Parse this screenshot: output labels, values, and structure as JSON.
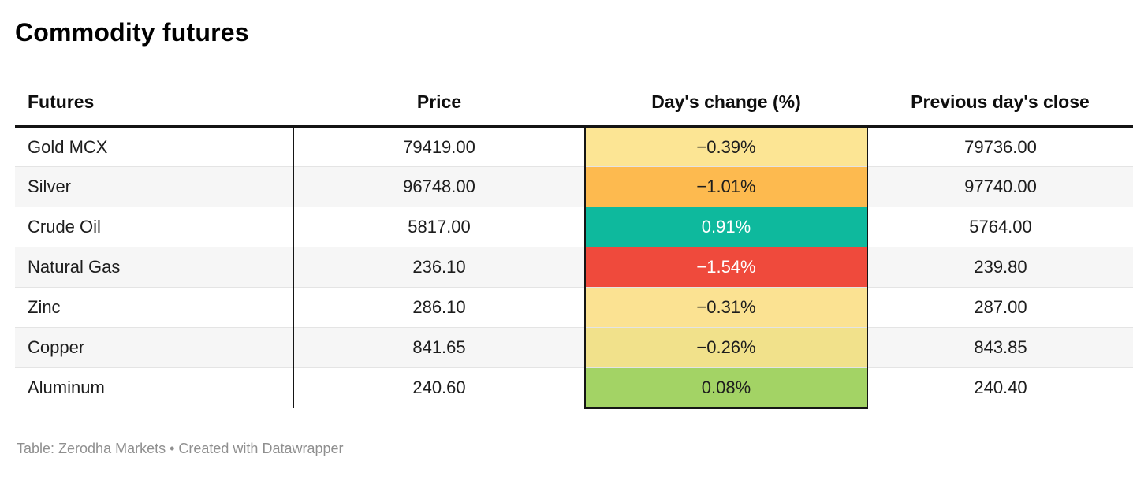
{
  "title": "Commodity futures",
  "footer": "Table: Zerodha Markets • Created with Datawrapper",
  "table": {
    "columns": [
      "Futures",
      "Price",
      "Day's change (%)",
      "Previous day's close"
    ],
    "rows": [
      {
        "futures": "Gold MCX",
        "price": "79419.00",
        "change": "−0.39%",
        "prev_close": "79736.00",
        "change_bg": "#fce594",
        "change_text": "#1d1d1d"
      },
      {
        "futures": "Silver",
        "price": "96748.00",
        "change": "−1.01%",
        "prev_close": "97740.00",
        "change_bg": "#fdba4f",
        "change_text": "#1d1d1d"
      },
      {
        "futures": "Crude Oil",
        "price": "5817.00",
        "change": "0.91%",
        "prev_close": "5764.00",
        "change_bg": "#0eb99d",
        "change_text": "#ffffff"
      },
      {
        "futures": "Natural Gas",
        "price": "236.10",
        "change": "−1.54%",
        "prev_close": "239.80",
        "change_bg": "#ef4a3c",
        "change_text": "#ffffff"
      },
      {
        "futures": "Zinc",
        "price": "286.10",
        "change": "−0.31%",
        "prev_close": "287.00",
        "change_bg": "#fbe292",
        "change_text": "#1d1d1d"
      },
      {
        "futures": "Copper",
        "price": "841.65",
        "change": "−0.26%",
        "prev_close": "843.85",
        "change_bg": "#f1e18b",
        "change_text": "#1d1d1d"
      },
      {
        "futures": "Aluminum",
        "price": "240.60",
        "change": "0.08%",
        "prev_close": "240.40",
        "change_bg": "#a3d365",
        "change_text": "#1d1d1d"
      }
    ]
  },
  "colors": {
    "positive_strong": "#0eb99d",
    "positive_mild": "#a3d365",
    "negative_mild": "#fce594",
    "negative_medium": "#fdba4f",
    "negative_strong": "#ef4a3c",
    "header_border": "#141414",
    "stripe": "#f6f6f6",
    "footer_text": "#8f8f8f"
  },
  "chart_data": {
    "type": "table",
    "title": "Commodity futures",
    "columns": [
      "Futures",
      "Price",
      "Day's change (%)",
      "Previous day's close"
    ],
    "rows": [
      [
        "Gold MCX",
        79419.0,
        -0.39,
        79736.0
      ],
      [
        "Silver",
        96748.0,
        -1.01,
        97740.0
      ],
      [
        "Crude Oil",
        5817.0,
        0.91,
        5764.0
      ],
      [
        "Natural Gas",
        236.1,
        -1.54,
        239.8
      ],
      [
        "Zinc",
        286.1,
        -0.31,
        287.0
      ],
      [
        "Copper",
        841.65,
        -0.26,
        843.85
      ],
      [
        "Aluminum",
        240.6,
        0.08,
        240.4
      ]
    ],
    "heatmap_column": "Day's change (%)",
    "heatmap_note": "cells colored red-yellow-green by day's change value",
    "source": "Table: Zerodha Markets • Created with Datawrapper"
  }
}
